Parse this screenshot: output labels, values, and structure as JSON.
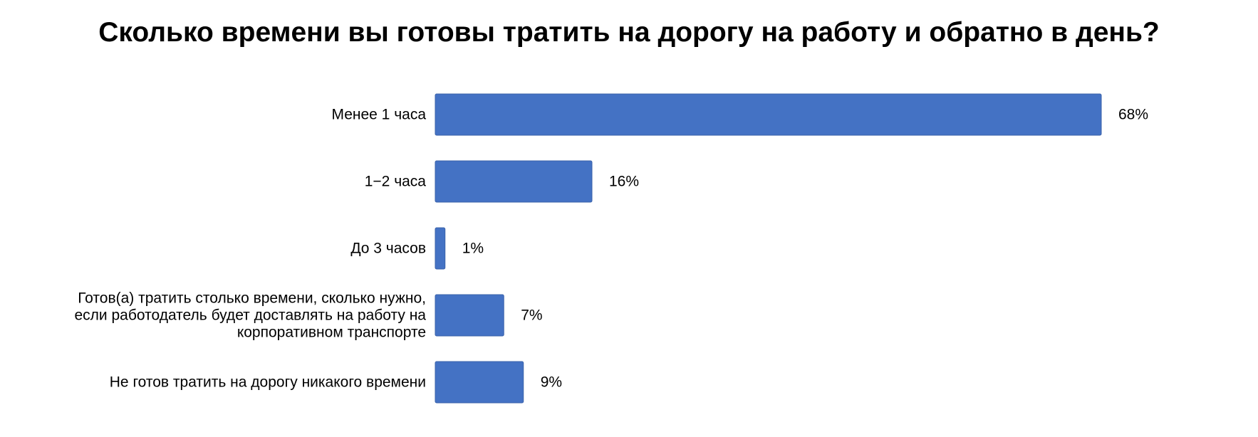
{
  "chart_data": {
    "type": "bar",
    "orientation": "horizontal",
    "title": "Сколько времени вы готовы тратить на дорогу на работу и обратно в день?",
    "categories": [
      [
        "Менее 1 часа"
      ],
      [
        "1−2 часа"
      ],
      [
        "До 3 часов"
      ],
      [
        "Готов(а) тратить столько времени, сколько нужно,",
        "если работодатель будет доставлять на работу на",
        "корпоративном транспорте"
      ],
      [
        "Не готов тратить на дорогу никакого времени"
      ]
    ],
    "values": [
      68,
      16,
      1,
      7,
      9
    ],
    "value_labels": [
      "68%",
      "16%",
      "1%",
      "7%",
      "9%"
    ],
    "unit": "%",
    "xlim": [
      0,
      68
    ],
    "grid": false,
    "legend": "none",
    "colors": {
      "bar": "#4472C4",
      "bar_edge": "#3A62AA",
      "text": "#000000"
    }
  }
}
